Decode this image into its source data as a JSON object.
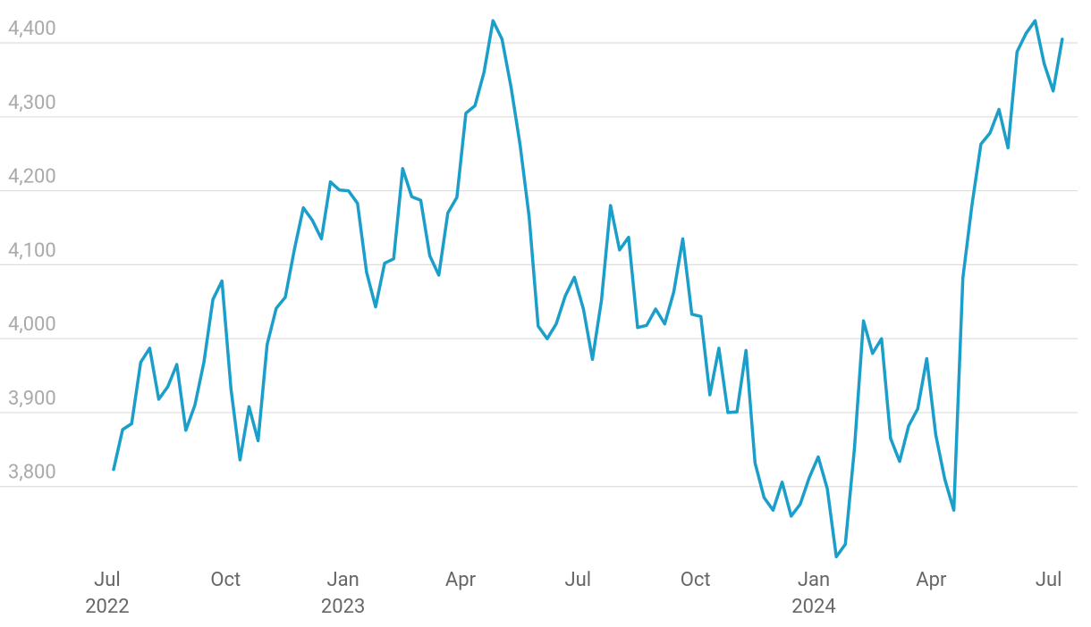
{
  "chart_data": {
    "type": "line",
    "series": [
      {
        "color": "#1b9fca",
        "values": [
          3823,
          3877,
          3885,
          3968,
          3987,
          3918,
          3935,
          3965,
          3876,
          3910,
          3968,
          4053,
          4078,
          3932,
          3836,
          3908,
          3862,
          3992,
          4041,
          4056,
          4120,
          4177,
          4160,
          4135,
          4212,
          4201,
          4200,
          4183,
          4090,
          4043,
          4102,
          4108,
          4230,
          4192,
          4187,
          4112,
          4086,
          4170,
          4191,
          4305,
          4315,
          4360,
          4430,
          4405,
          4340,
          4262,
          4165,
          4017,
          4000,
          4020,
          4058,
          4083,
          4040,
          3972,
          4052,
          4180,
          4120,
          4137,
          4015,
          4018,
          4040,
          4020,
          4063,
          4135,
          4033,
          4030,
          3924,
          3987,
          3900,
          3901,
          3984,
          3832,
          3785,
          3768,
          3806,
          3760,
          3776,
          3812,
          3840,
          3797,
          3705,
          3722,
          3852,
          4024,
          3980,
          4000,
          3865,
          3834,
          3882,
          3905,
          3973,
          3870,
          3810,
          3768,
          4082,
          4180,
          4263,
          4278,
          4310,
          4258,
          4388,
          4413,
          4430,
          4372,
          4335,
          4405
        ]
      }
    ],
    "xlim": [
      -12.57,
      106.7
    ],
    "xticks": [
      {
        "value": -0.7,
        "label": "Jul"
      },
      {
        "value": 12.4,
        "label": "Oct"
      },
      {
        "value": 25.4,
        "label": "Jan"
      },
      {
        "value": 38.4,
        "label": "Apr"
      },
      {
        "value": 51.4,
        "label": "Jul"
      },
      {
        "value": 64.4,
        "label": "Oct"
      },
      {
        "value": 77.5,
        "label": "Jan"
      },
      {
        "value": 90.5,
        "label": "Apr"
      },
      {
        "value": 103.5,
        "label": "Jul"
      }
    ],
    "x_year_labels": [
      {
        "value": -0.7,
        "label": "2022"
      },
      {
        "value": 25.4,
        "label": "2023"
      },
      {
        "value": 77.5,
        "label": "2024"
      }
    ],
    "ylim": [
      3697,
      4458
    ],
    "yticks": [
      {
        "value": 3800,
        "label": "3,800"
      },
      {
        "value": 3900,
        "label": "3,900"
      },
      {
        "value": 4000,
        "label": "4,000"
      },
      {
        "value": 4100,
        "label": "4,100"
      },
      {
        "value": 4200,
        "label": "4,200"
      },
      {
        "value": 4300,
        "label": "4,300"
      },
      {
        "value": 4400,
        "label": "4,400"
      }
    ],
    "grid": true
  }
}
